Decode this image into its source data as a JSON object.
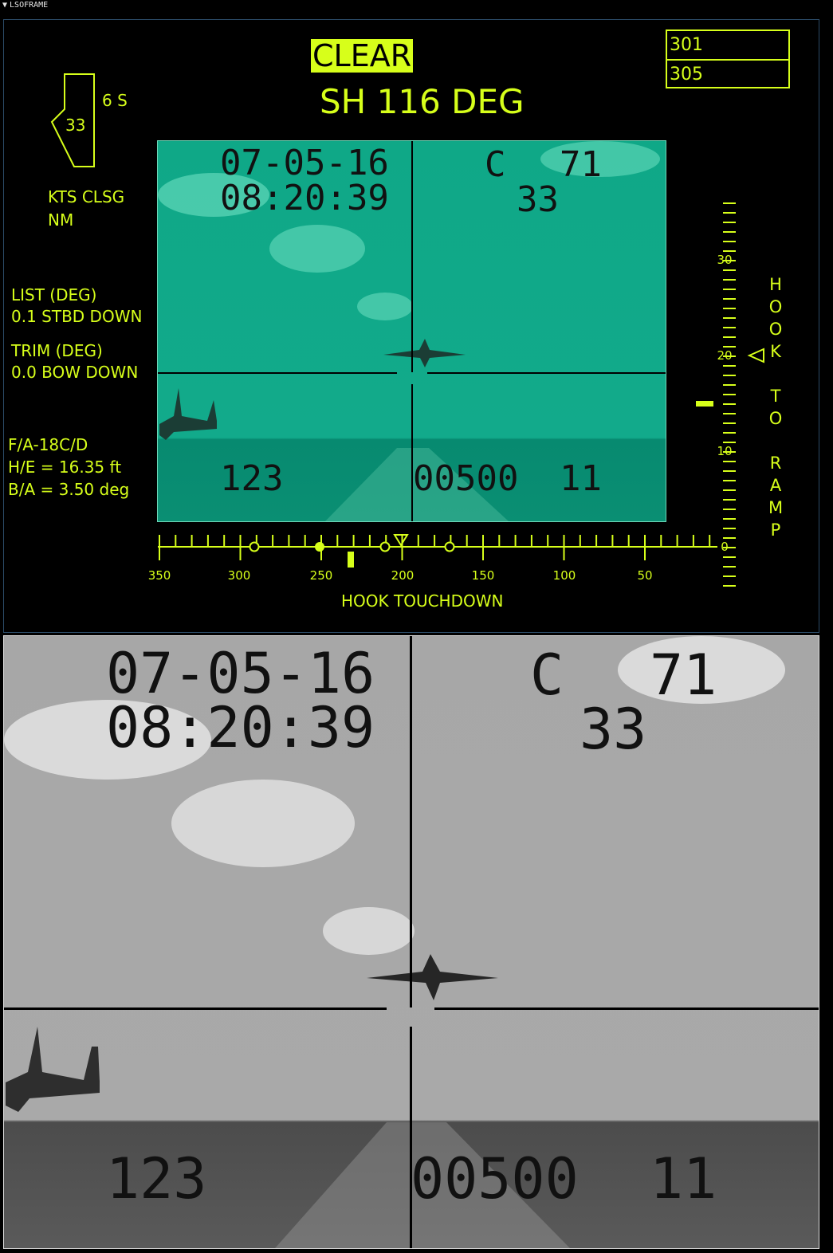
{
  "window": {
    "title": "LSOFRAME"
  },
  "status": {
    "clear": "CLEAR",
    "heading": "SH 116 DEG"
  },
  "boxes": [
    "301",
    "305"
  ],
  "wind_indicator": {
    "value": "33",
    "label": "6 S"
  },
  "closure": {
    "line1": "KTS CLSG",
    "line2": "NM"
  },
  "list": {
    "label": "LIST (DEG)",
    "value": "0.1 STBD DOWN"
  },
  "trim": {
    "label": "TRIM (DEG)",
    "value": "0.0 BOW DOWN"
  },
  "aircraft": {
    "type": "F/A-18C/D",
    "he": "H/E = 16.35 ft",
    "ba": "B/A = 3.50 deg"
  },
  "camera_overlay": {
    "date": "07-05-16",
    "time": "08:20:39",
    "c_label": "C",
    "c_value": "71",
    "c_sub": "33",
    "bottom_left": "123",
    "bottom_mid": "00500",
    "bottom_right": "11"
  },
  "hook_touchdown": {
    "label": "HOOK TOUCHDOWN",
    "ticks": [
      "350",
      "300",
      "250",
      "200",
      "150",
      "100",
      "50"
    ]
  },
  "hook_to_ramp": {
    "words": [
      "HOOK",
      "TO",
      "RAMP"
    ],
    "ticks": [
      "30",
      "20",
      "10",
      "0"
    ]
  },
  "colors": {
    "accent": "#d7ff1a",
    "hud_tint": "#12aa8b"
  }
}
